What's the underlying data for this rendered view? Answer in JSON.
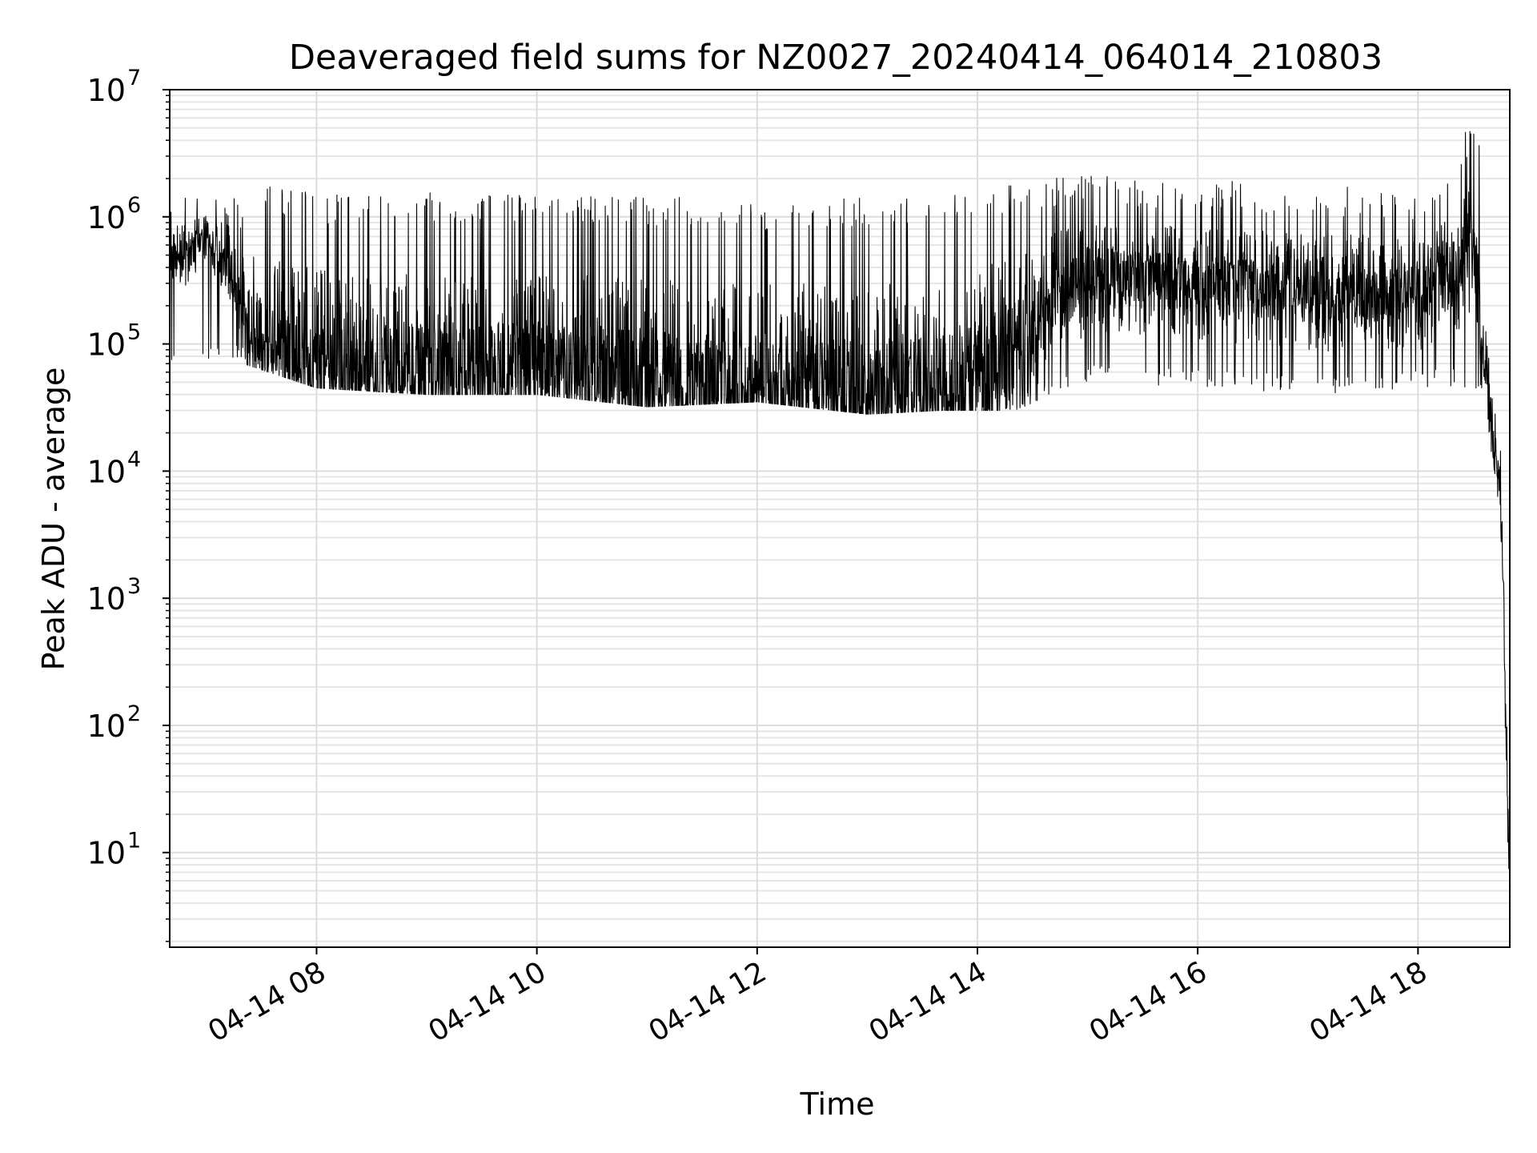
{
  "chart_data": {
    "type": "line",
    "title": "Deaveraged field sums for NZ0027_20240414_064014_210803",
    "xlabel": "Time",
    "ylabel": "Peak ADU - average",
    "xscale": "time",
    "yscale": "log",
    "xlim": [
      "2024-04-14 06:40",
      "2024-04-14 18:50"
    ],
    "ylim": [
      1.8,
      10000000
    ],
    "grid": true,
    "x_ticks": [
      {
        "value": "2024-04-14 08:00",
        "label": "04-14 08"
      },
      {
        "value": "2024-04-14 10:00",
        "label": "04-14 10"
      },
      {
        "value": "2024-04-14 12:00",
        "label": "04-14 12"
      },
      {
        "value": "2024-04-14 14:00",
        "label": "04-14 14"
      },
      {
        "value": "2024-04-14 16:00",
        "label": "04-14 16"
      },
      {
        "value": "2024-04-14 18:00",
        "label": "04-14 18"
      }
    ],
    "y_ticks": [
      {
        "value": 10,
        "base": "10",
        "exp": "1"
      },
      {
        "value": 100,
        "base": "10",
        "exp": "2"
      },
      {
        "value": 1000,
        "base": "10",
        "exp": "3"
      },
      {
        "value": 10000,
        "base": "10",
        "exp": "4"
      },
      {
        "value": 100000,
        "base": "10",
        "exp": "5"
      },
      {
        "value": 1000000,
        "base": "10",
        "exp": "6"
      },
      {
        "value": 10000000,
        "base": "10",
        "exp": "7"
      }
    ],
    "series": [
      {
        "color": "#000000",
        "baseline": {
          "x": [
            "2024-04-14 06:40",
            "2024-04-14 06:50",
            "2024-04-14 07:00",
            "2024-04-14 07:10",
            "2024-04-14 07:20",
            "2024-04-14 07:30",
            "2024-04-14 07:45",
            "2024-04-14 08:00",
            "2024-04-14 09:00",
            "2024-04-14 10:00",
            "2024-04-14 11:00",
            "2024-04-14 12:00",
            "2024-04-14 13:00",
            "2024-04-14 13:50",
            "2024-04-14 14:10",
            "2024-04-14 14:30",
            "2024-04-14 14:40",
            "2024-04-14 15:00",
            "2024-04-14 16:00",
            "2024-04-14 17:00",
            "2024-04-14 18:00",
            "2024-04-14 18:20",
            "2024-04-14 18:30",
            "2024-04-14 18:35",
            "2024-04-14 18:40",
            "2024-04-14 18:45",
            "2024-04-14 18:48",
            "2024-04-14 18:50"
          ],
          "y": [
            450000,
            500000,
            700000,
            400000,
            200000,
            110000,
            80000,
            70000,
            60000,
            65000,
            50000,
            45000,
            45000,
            50000,
            80000,
            120000,
            200000,
            350000,
            300000,
            250000,
            250000,
            350000,
            600000,
            120000,
            25000,
            8000,
            100,
            4
          ]
        },
        "peaks": {
          "x": [
            "2024-04-14 07:20",
            "2024-04-14 07:35",
            "2024-04-14 08:15",
            "2024-04-14 08:40",
            "2024-04-14 09:00",
            "2024-04-14 09:20",
            "2024-04-14 10:00",
            "2024-04-14 10:20",
            "2024-04-14 11:00",
            "2024-04-14 12:00",
            "2024-04-14 13:00",
            "2024-04-14 13:40",
            "2024-04-14 14:00",
            "2024-04-14 15:00",
            "2024-04-14 16:00",
            "2024-04-14 17:00",
            "2024-04-14 18:00",
            "2024-04-14 18:30"
          ],
          "y": [
            1400000,
            1800000,
            1500000,
            1600000,
            1600000,
            1500000,
            1500000,
            1500000,
            1500000,
            1400000,
            1400000,
            1500000,
            1800000,
            2200000,
            2000000,
            1800000,
            1600000,
            5500000
          ]
        },
        "dips": {
          "x": [
            "2024-04-14 07:20",
            "2024-04-14 08:00",
            "2024-04-14 09:00",
            "2024-04-14 10:00",
            "2024-04-14 11:00",
            "2024-04-14 12:00",
            "2024-04-14 13:00",
            "2024-04-14 13:40",
            "2024-04-14 14:00",
            "2024-04-14 14:20",
            "2024-04-14 15:00",
            "2024-04-14 16:00",
            "2024-04-14 17:00",
            "2024-04-14 18:00"
          ],
          "y": [
            70000,
            45000,
            40000,
            40000,
            32000,
            35000,
            28000,
            30000,
            30000,
            30000,
            50000,
            45000,
            40000,
            45000
          ]
        }
      }
    ]
  }
}
